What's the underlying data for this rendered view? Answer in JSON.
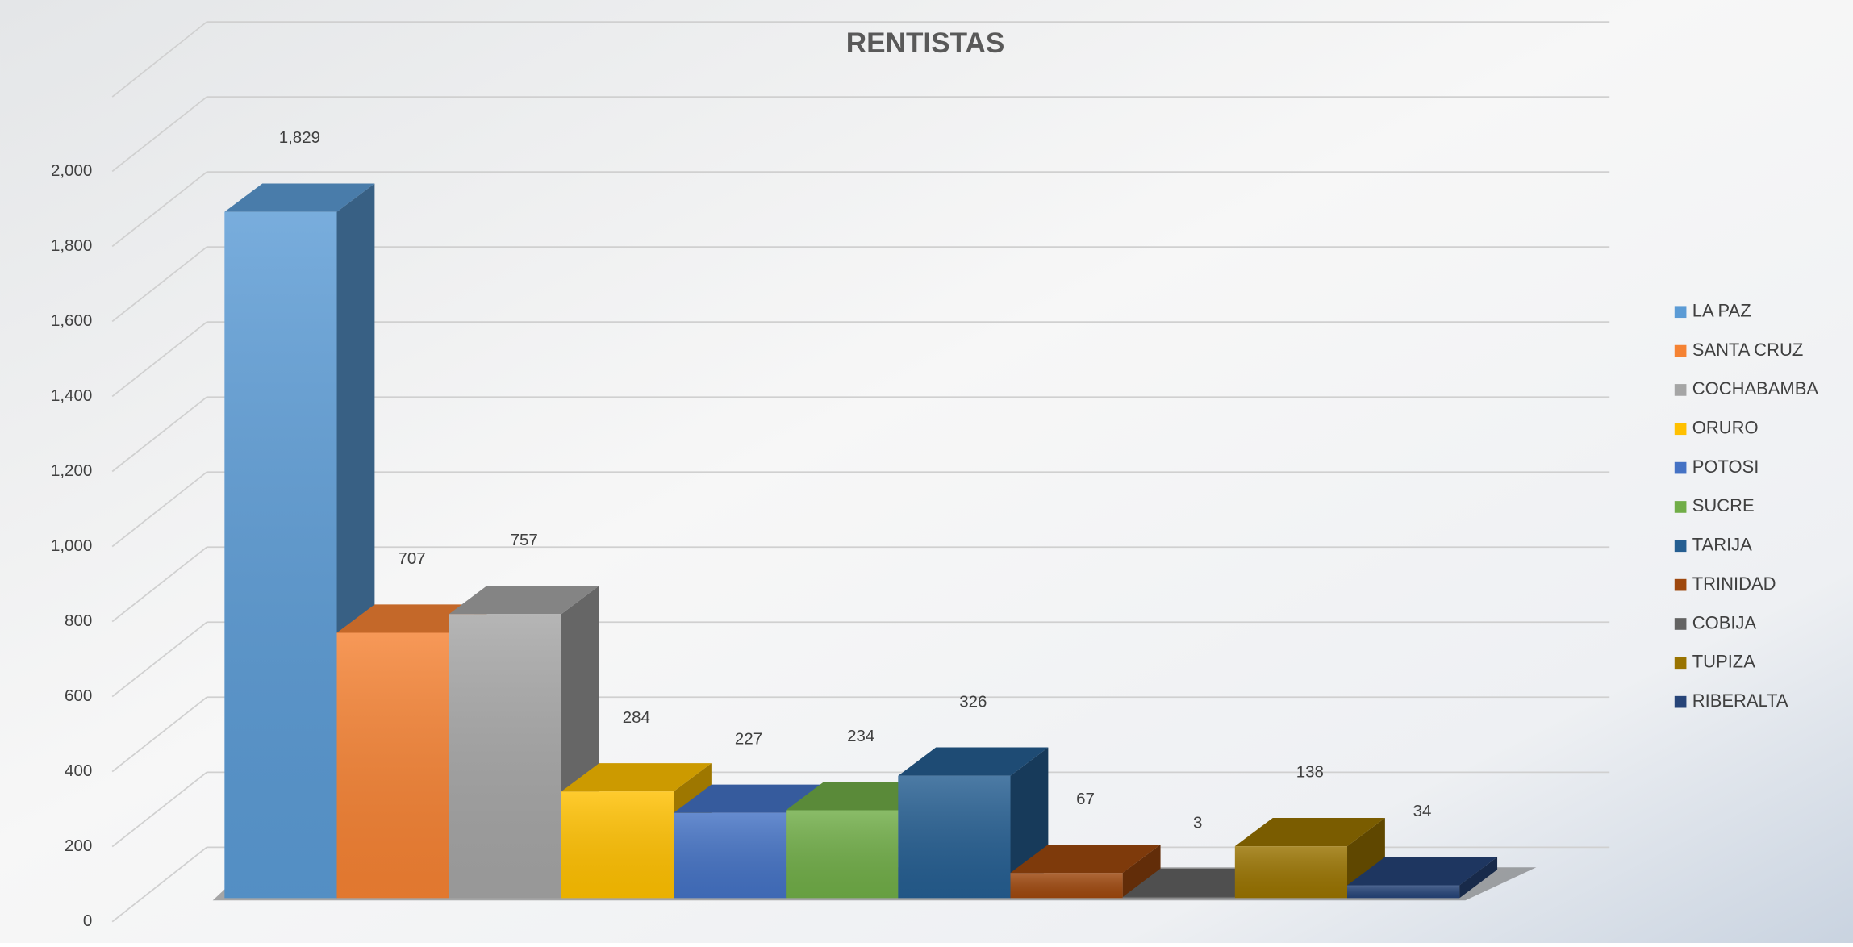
{
  "chart_data": {
    "type": "bar3d",
    "title": "RENTISTAS",
    "categories": [
      "LA PAZ",
      "SANTA CRUZ",
      "COCHABAMBA",
      "ORURO",
      "POTOSI",
      "SUCRE",
      "TARIJA",
      "TRINIDAD",
      "COBIJA",
      "TUPIZA",
      "RIBERALTA"
    ],
    "values": [
      1829,
      707,
      757,
      284,
      227,
      234,
      326,
      67,
      3,
      138,
      34
    ],
    "value_labels": [
      "1,829",
      "707",
      "757",
      "284",
      "227",
      "234",
      "326",
      "67",
      "3",
      "138",
      "34"
    ],
    "colors": [
      "#5b9bd5",
      "#f58233",
      "#a5a5a5",
      "#ffc000",
      "#4472c4",
      "#70ad47",
      "#255e91",
      "#9e480e",
      "#636363",
      "#997300",
      "#264478"
    ],
    "ylim": [
      0,
      2000
    ],
    "yticks": [
      0,
      200,
      400,
      600,
      800,
      {
        "value": 1000,
        "label": "1,000"
      },
      {
        "value": 1200,
        "label": "1,200"
      },
      {
        "value": 1400,
        "label": "1,400"
      },
      {
        "value": 1600,
        "label": "1,600"
      },
      {
        "value": 1800,
        "label": "1,800"
      },
      {
        "value": 2000,
        "label": "2,000"
      }
    ],
    "grid": true,
    "legend": "right"
  }
}
